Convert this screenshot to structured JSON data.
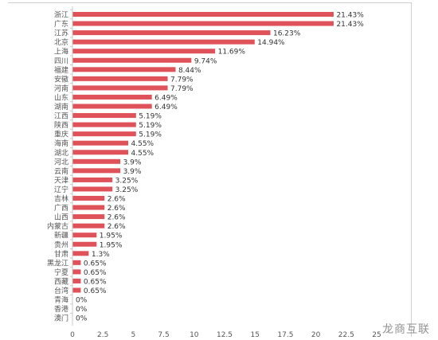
{
  "watermark": "龙商互联",
  "chart_data": {
    "type": "bar",
    "orientation": "horizontal",
    "bar_color": "#e0525a",
    "grid": false,
    "xlim": [
      0,
      25
    ],
    "xticks": [
      "0",
      "2.5",
      "5",
      "7.5",
      "10",
      "12.5",
      "15",
      "17.5",
      "20",
      "22.5",
      "25"
    ],
    "categories": [
      "浙江",
      "广东",
      "江苏",
      "北京",
      "上海",
      "四川",
      "福建",
      "安徽",
      "河南",
      "山东",
      "湖南",
      "江西",
      "陕西",
      "重庆",
      "海南",
      "湖北",
      "河北",
      "云南",
      "天津",
      "辽宁",
      "吉林",
      "广西",
      "山西",
      "内蒙古",
      "新疆",
      "贵州",
      "甘肃",
      "黑龙江",
      "宁夏",
      "西藏",
      "台湾",
      "青海",
      "香港",
      "澳门"
    ],
    "values": [
      21.43,
      21.43,
      16.23,
      14.94,
      11.69,
      9.74,
      8.44,
      7.79,
      7.79,
      6.49,
      6.49,
      5.19,
      5.19,
      5.19,
      4.55,
      4.55,
      3.9,
      3.9,
      3.25,
      3.25,
      2.6,
      2.6,
      2.6,
      2.6,
      1.95,
      1.95,
      1.3,
      0.65,
      0.65,
      0.65,
      0.65,
      0,
      0,
      0
    ],
    "labels": [
      "21.43%",
      "21.43%",
      "16.23%",
      "14.94%",
      "11.69%",
      "9.74%",
      "8.44%",
      "7.79%",
      "7.79%",
      "6.49%",
      "6.49%",
      "5.19%",
      "5.19%",
      "5.19%",
      "4.55%",
      "4.55%",
      "3.9%",
      "3.9%",
      "3.25%",
      "3.25%",
      "2.6%",
      "2.6%",
      "2.6%",
      "2.6%",
      "1.95%",
      "1.95%",
      "1.3%",
      "0.65%",
      "0.65%",
      "0.65%",
      "0.65%",
      "0%",
      "0%",
      "0%"
    ]
  }
}
